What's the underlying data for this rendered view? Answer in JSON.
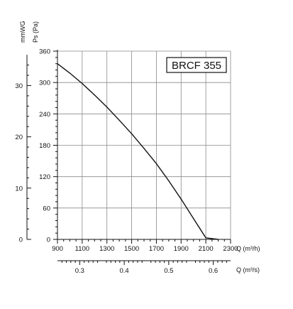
{
  "chart_data": {
    "type": "line",
    "model_label": "BRCF 355",
    "x": {
      "label": "Q (m³/h)",
      "range": [
        900,
        2300
      ],
      "ticks": [
        900,
        1100,
        1300,
        1500,
        1700,
        1900,
        2100,
        2300
      ],
      "tick_labels": [
        "900",
        "1100",
        "1300",
        "1500",
        "1700",
        "1900",
        "2100",
        "2300"
      ]
    },
    "x2": {
      "label": "Q (m³/s)",
      "ticks": [
        0.3,
        0.4,
        0.5,
        0.6
      ],
      "tick_labels": [
        "0.3",
        "0.4",
        "0.5",
        "0.6"
      ]
    },
    "y": {
      "label": "Ps (Pa)",
      "range": [
        0,
        360
      ],
      "ticks": [
        0,
        60,
        120,
        180,
        240,
        300,
        360
      ],
      "tick_labels": [
        "0",
        "60",
        "120",
        "180",
        "240",
        "300",
        "360"
      ]
    },
    "y2": {
      "label": "mmWG",
      "ticks": [
        0,
        10,
        20,
        30
      ],
      "tick_labels": [
        "0",
        "10",
        "20",
        "30"
      ]
    },
    "grid": true,
    "series": [
      {
        "x": [
          900,
          1000,
          1100,
          1200,
          1300,
          1400,
          1500,
          1600,
          1700,
          1800,
          1900,
          2000,
          2100,
          2200
        ],
        "y": [
          336,
          318,
          298,
          276,
          253,
          228,
          202,
          174,
          145,
          112,
          77,
          40,
          3,
          0
        ]
      }
    ]
  }
}
